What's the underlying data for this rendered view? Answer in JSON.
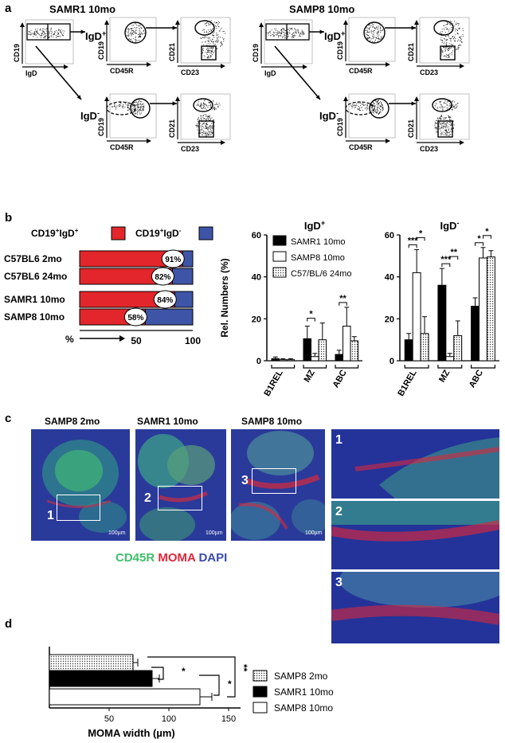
{
  "panel_letters": {
    "a": "a",
    "b": "b",
    "c": "c",
    "d": "d"
  },
  "panel_a": {
    "left_title": "SAMR1 10mo",
    "right_title": "SAMP8 10mo",
    "gate_positive": "IgD",
    "gate_positive_sup": "+",
    "gate_negative": "IgD",
    "gate_negative_sup": "-",
    "axis_cd19": "CD19",
    "axis_igd": "IgD",
    "axis_cd45r": "CD45R",
    "axis_cd21": "CD21",
    "axis_cd23": "CD23"
  },
  "panel_c": {
    "titles": [
      "SAMP8 2mo",
      "SAMR1 10mo",
      "SAMP8 10mo"
    ],
    "roi_numbers": [
      "1",
      "2",
      "3"
    ],
    "scale_bar": "100µm",
    "stain_green": "CD45R",
    "stain_red": "MOMA",
    "stain_blue": "DAPI",
    "colors": {
      "green": "#3fbf6a",
      "red": "#e0263a",
      "blue": "#3a4bb0"
    }
  },
  "chart_data": [
    {
      "id": "b-left",
      "type": "bar",
      "orientation": "horizontal",
      "stacked": true,
      "legend": [
        {
          "label": "CD19",
          "sup": "+",
          "label2": "IgD",
          "sup2": "+",
          "color": "#e2262b"
        },
        {
          "label": "CD19",
          "sup": "+",
          "label2": "IgD",
          "sup2": "-",
          "color": "#3e55a7"
        }
      ],
      "categories": [
        "C57BL6 2mo",
        "C57BL6 24mo",
        "SAMR1 10mo",
        "SAMP8 10mo"
      ],
      "igd_pos": [
        91,
        82,
        84,
        58
      ],
      "igd_neg": [
        9,
        18,
        16,
        42
      ],
      "pct_labels": [
        "91%",
        "82%",
        "84%",
        "58%"
      ],
      "xlim": [
        0,
        100
      ],
      "x_ticks": [
        "50",
        "100"
      ],
      "xlabel": "%"
    },
    {
      "id": "b-middle",
      "type": "bar",
      "title": "IgD",
      "title_sup": "+",
      "ylabel": "Rel. Numbers (%)",
      "ylim": [
        0,
        60
      ],
      "y_ticks": [
        0,
        20,
        40,
        60
      ],
      "categories": [
        "B1REL",
        "MZ",
        "ABC"
      ],
      "series": [
        {
          "name": "SAMR1 10mo",
          "fill": "#000000",
          "values": [
            1,
            10.5,
            3
          ],
          "err": [
            0.8,
            6,
            2
          ]
        },
        {
          "name": "SAMP8 10mo",
          "fill": "#ffffff",
          "values": [
            0.5,
            2,
            16.5
          ],
          "err": [
            0.5,
            1.5,
            9
          ]
        },
        {
          "name": "C57/BL/6 24mo",
          "fill": "dots",
          "values": [
            0.5,
            10,
            9.5
          ],
          "err": [
            0.5,
            8,
            2
          ]
        }
      ],
      "significance": [
        {
          "category": "MZ",
          "label": "*"
        },
        {
          "category": "ABC",
          "label": "**"
        }
      ]
    },
    {
      "id": "b-right",
      "type": "bar",
      "title": "IgD",
      "title_sup": "-",
      "ylim": [
        0,
        60
      ],
      "y_ticks": [
        0,
        20,
        40,
        60
      ],
      "categories": [
        "B1REL",
        "MZ",
        "ABC"
      ],
      "series": [
        {
          "name": "SAMR1 10mo",
          "fill": "#000000",
          "values": [
            10,
            36,
            26
          ],
          "err": [
            3,
            8,
            4
          ]
        },
        {
          "name": "SAMP8 10mo",
          "fill": "#ffffff",
          "values": [
            42,
            2,
            49
          ],
          "err": [
            11,
            1.5,
            5
          ]
        },
        {
          "name": "C57/BL/6 24mo",
          "fill": "dots",
          "values": [
            13,
            12,
            49.5
          ],
          "err": [
            8,
            7,
            3
          ]
        }
      ],
      "significance": [
        {
          "category": "B1REL",
          "label": "***"
        },
        {
          "category": "B1REL",
          "label": "*"
        },
        {
          "category": "MZ",
          "label": "***"
        },
        {
          "category": "MZ",
          "label": "**"
        },
        {
          "category": "ABC",
          "label": "*"
        },
        {
          "category": "ABC",
          "label": "*"
        }
      ]
    },
    {
      "id": "d",
      "type": "bar",
      "orientation": "horizontal",
      "xlabel": "MOMA width (µm)",
      "xlim": [
        0,
        160
      ],
      "x_ticks": [
        50,
        100,
        150
      ],
      "series": [
        {
          "name": "SAMP8 2mo",
          "fill": "dots",
          "value": 70,
          "err": 4
        },
        {
          "name": "SAMR1 10mo",
          "fill": "#000000",
          "value": 86,
          "err": 6
        },
        {
          "name": "SAMP8 10mo",
          "fill": "#ffffff",
          "value": 126,
          "err": 10
        }
      ],
      "significance": [
        "*",
        "*",
        "**"
      ]
    }
  ]
}
